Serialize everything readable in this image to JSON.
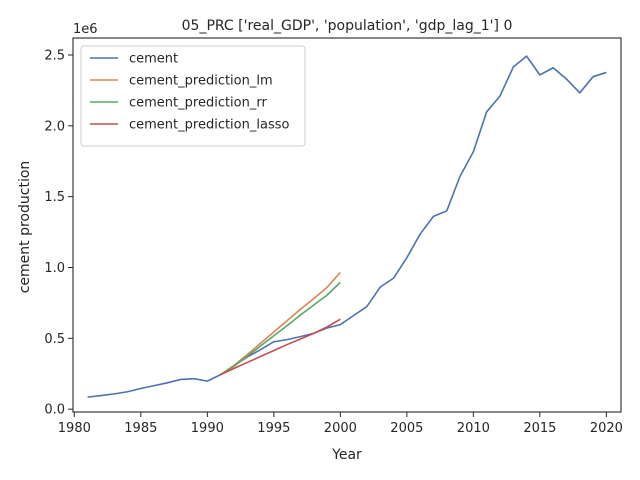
{
  "chart_data": {
    "type": "line",
    "title": "05_PRC ['real_GDP', 'population', 'gdp_lag_1'] 0",
    "xlabel": "Year",
    "ylabel": "cement production",
    "y_scale_label": "1e6",
    "xlim": [
      1979.9,
      2021.1
    ],
    "ylim": [
      -0.02,
      2.62
    ],
    "x_ticks": [
      1980,
      1985,
      1990,
      1995,
      2000,
      2005,
      2010,
      2015,
      2020
    ],
    "x_tick_labels": [
      "1980",
      "1985",
      "1990",
      "1995",
      "2000",
      "2005",
      "2010",
      "2015",
      "2020"
    ],
    "y_ticks": [
      0.0,
      0.5,
      1.0,
      1.5,
      2.0,
      2.5
    ],
    "y_tick_labels": [
      "0.0",
      "0.5",
      "1.0",
      "1.5",
      "2.0",
      "2.5"
    ],
    "grid": false,
    "legend_position": "top-left",
    "series": [
      {
        "name": "cement",
        "color": "#4c72b0",
        "x": [
          1981,
          1982,
          1983,
          1984,
          1985,
          1986,
          1987,
          1988,
          1989,
          1990,
          1991,
          1992,
          1993,
          1994,
          1995,
          1996,
          1997,
          1998,
          1999,
          2000,
          2001,
          2002,
          2003,
          2004,
          2005,
          2006,
          2007,
          2008,
          2009,
          2010,
          2011,
          2012,
          2013,
          2014,
          2015,
          2016,
          2017,
          2018,
          2019,
          2020
        ],
        "y": [
          0.085,
          0.096,
          0.108,
          0.123,
          0.146,
          0.166,
          0.186,
          0.21,
          0.215,
          0.198,
          0.244,
          0.308,
          0.368,
          0.42,
          0.476,
          0.491,
          0.512,
          0.536,
          0.573,
          0.597,
          0.661,
          0.725,
          0.862,
          0.925,
          1.069,
          1.236,
          1.361,
          1.4,
          1.644,
          1.817,
          2.099,
          2.21,
          2.415,
          2.492,
          2.359,
          2.41,
          2.33,
          2.233,
          2.347,
          2.377
        ]
      },
      {
        "name": "cement_prediction_lm",
        "color": "#dd8452",
        "x": [
          1991,
          1992,
          1993,
          1994,
          1995,
          1996,
          1997,
          1998,
          1999,
          2000
        ],
        "y": [
          0.244,
          0.308,
          0.385,
          0.465,
          0.545,
          0.625,
          0.705,
          0.78,
          0.86,
          0.965
        ]
      },
      {
        "name": "cement_prediction_rr",
        "color": "#55a868",
        "x": [
          1991,
          1992,
          1993,
          1994,
          1995,
          1996,
          1997,
          1998,
          1999,
          2000
        ],
        "y": [
          0.244,
          0.302,
          0.373,
          0.446,
          0.518,
          0.59,
          0.665,
          0.735,
          0.805,
          0.895
        ]
      },
      {
        "name": "cement_prediction_lasso",
        "color": "#c44e52",
        "x": [
          1991,
          1992,
          1993,
          1994,
          1995,
          1996,
          1997,
          1998,
          1999,
          2000
        ],
        "y": [
          0.244,
          0.287,
          0.33,
          0.372,
          0.414,
          0.456,
          0.495,
          0.535,
          0.58,
          0.635
        ]
      }
    ]
  }
}
